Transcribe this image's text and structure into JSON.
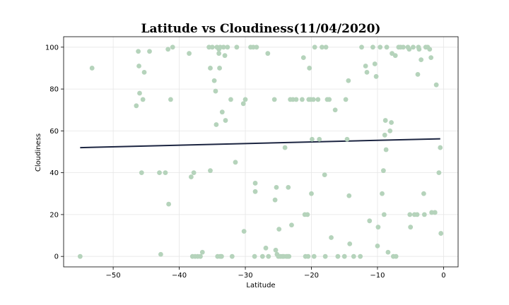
{
  "chart_data": {
    "type": "scatter",
    "title": "Latitude vs Cloudiness(11/04/2020)",
    "xlabel": "Latitude",
    "ylabel": "Cloudiness",
    "xlim": [
      -57.5,
      2.2
    ],
    "ylim": [
      -5,
      105
    ],
    "xticks": [
      -50,
      -40,
      -30,
      -20,
      -10,
      0
    ],
    "yticks": [
      0,
      20,
      40,
      60,
      80,
      100
    ],
    "grid": true,
    "marker_color": "#b5d3bb",
    "line_color": "#1c2541",
    "regression_line": {
      "x": [
        -55,
        -0.5
      ],
      "y": [
        52,
        56.2
      ]
    },
    "points": [
      [
        -55,
        0
      ],
      [
        -53.2,
        90
      ],
      [
        -46.5,
        72
      ],
      [
        -46.2,
        98
      ],
      [
        -46.1,
        91
      ],
      [
        -46,
        78
      ],
      [
        -45.7,
        40
      ],
      [
        -45.5,
        75
      ],
      [
        -45.3,
        88
      ],
      [
        -44.5,
        98
      ],
      [
        -43,
        40
      ],
      [
        -42.8,
        1
      ],
      [
        -42.1,
        40
      ],
      [
        -41.7,
        99
      ],
      [
        -41.6,
        25
      ],
      [
        -41.3,
        75
      ],
      [
        -41,
        100
      ],
      [
        -38.5,
        97
      ],
      [
        -38.2,
        38
      ],
      [
        -38,
        0
      ],
      [
        -37.8,
        40
      ],
      [
        -37.6,
        0
      ],
      [
        -37.2,
        0
      ],
      [
        -36.8,
        0
      ],
      [
        -36.5,
        2
      ],
      [
        -35.5,
        100
      ],
      [
        -35.3,
        41
      ],
      [
        -35.3,
        90
      ],
      [
        -35,
        100
      ],
      [
        -34.7,
        84
      ],
      [
        -34.5,
        79
      ],
      [
        -34.4,
        63
      ],
      [
        -34.3,
        100
      ],
      [
        -34.2,
        0
      ],
      [
        -34,
        97
      ],
      [
        -34,
        99
      ],
      [
        -33.9,
        90
      ],
      [
        -33.8,
        0
      ],
      [
        -33.8,
        100
      ],
      [
        -33.6,
        0
      ],
      [
        -33.5,
        69
      ],
      [
        -33.3,
        100
      ],
      [
        -33.1,
        96
      ],
      [
        -33,
        65
      ],
      [
        -32.7,
        100
      ],
      [
        -32.2,
        75
      ],
      [
        -32,
        0
      ],
      [
        -31.5,
        45
      ],
      [
        -31.3,
        100
      ],
      [
        -30.3,
        73
      ],
      [
        -30.2,
        12
      ],
      [
        -30,
        75
      ],
      [
        -29.2,
        100
      ],
      [
        -28.8,
        100
      ],
      [
        -28.6,
        0
      ],
      [
        -28.5,
        35
      ],
      [
        -28.5,
        31
      ],
      [
        -28.3,
        100
      ],
      [
        -27.4,
        0
      ],
      [
        -26.9,
        4
      ],
      [
        -26.6,
        97
      ],
      [
        -26.5,
        0
      ],
      [
        -25.6,
        75
      ],
      [
        -25.5,
        27
      ],
      [
        -25.4,
        3
      ],
      [
        -25.3,
        33
      ],
      [
        -25.2,
        1
      ],
      [
        -25,
        0
      ],
      [
        -24.9,
        13
      ],
      [
        -24.7,
        0
      ],
      [
        -24.4,
        0
      ],
      [
        -24.2,
        0
      ],
      [
        -24,
        52
      ],
      [
        -23.8,
        0
      ],
      [
        -23.6,
        0
      ],
      [
        -23.5,
        33
      ],
      [
        -23.4,
        0
      ],
      [
        -23.2,
        75
      ],
      [
        -23,
        15
      ],
      [
        -22.8,
        75
      ],
      [
        -22.3,
        75
      ],
      [
        -21.4,
        75
      ],
      [
        -21.2,
        95
      ],
      [
        -21,
        20
      ],
      [
        -20.9,
        0
      ],
      [
        -20.6,
        20
      ],
      [
        -20.5,
        0
      ],
      [
        -20.4,
        75
      ],
      [
        -20.3,
        90
      ],
      [
        -20.1,
        75
      ],
      [
        -20,
        30
      ],
      [
        -19.9,
        56
      ],
      [
        -19.7,
        75
      ],
      [
        -19.6,
        0
      ],
      [
        -19.5,
        100
      ],
      [
        -19,
        75
      ],
      [
        -18.8,
        56
      ],
      [
        -18.4,
        100
      ],
      [
        -18,
        39
      ],
      [
        -17.9,
        0
      ],
      [
        -17.8,
        100
      ],
      [
        -17.6,
        75
      ],
      [
        -17.3,
        75
      ],
      [
        -17,
        9
      ],
      [
        -16.4,
        70
      ],
      [
        -16,
        0
      ],
      [
        -15,
        0
      ],
      [
        -14.8,
        75
      ],
      [
        -14.6,
        56
      ],
      [
        -14.4,
        84
      ],
      [
        -14.3,
        29
      ],
      [
        -14.2,
        6
      ],
      [
        -13.6,
        0
      ],
      [
        -12.6,
        0
      ],
      [
        -12.4,
        100
      ],
      [
        -11.8,
        91
      ],
      [
        -11.6,
        88
      ],
      [
        -11.2,
        17
      ],
      [
        -10.7,
        100
      ],
      [
        -10.4,
        92
      ],
      [
        -10.2,
        86
      ],
      [
        -10,
        5
      ],
      [
        -9.9,
        14
      ],
      [
        -9.6,
        100
      ],
      [
        -9.3,
        30
      ],
      [
        -9.1,
        41
      ],
      [
        -9,
        20
      ],
      [
        -8.9,
        58
      ],
      [
        -8.8,
        65
      ],
      [
        -8.7,
        51
      ],
      [
        -8.6,
        100
      ],
      [
        -8.4,
        2
      ],
      [
        -8.1,
        60
      ],
      [
        -7.9,
        64
      ],
      [
        -7.8,
        97
      ],
      [
        -7.6,
        0
      ],
      [
        -7.3,
        96
      ],
      [
        -7.2,
        0
      ],
      [
        -6.8,
        100
      ],
      [
        -6.5,
        100
      ],
      [
        -6.1,
        100
      ],
      [
        -5.4,
        100
      ],
      [
        -5.2,
        99
      ],
      [
        -5.1,
        20
      ],
      [
        -5,
        14
      ],
      [
        -4.6,
        100
      ],
      [
        -4.4,
        20
      ],
      [
        -4,
        20
      ],
      [
        -3.9,
        87
      ],
      [
        -3.8,
        100
      ],
      [
        -3.7,
        99
      ],
      [
        -3.4,
        94
      ],
      [
        -3,
        30
      ],
      [
        -2.9,
        20
      ],
      [
        -2.7,
        100
      ],
      [
        -2.4,
        100
      ],
      [
        -2.1,
        99
      ],
      [
        -1.9,
        95
      ],
      [
        -1.8,
        21
      ],
      [
        -1.3,
        21
      ],
      [
        -1.1,
        82
      ],
      [
        -0.7,
        40
      ],
      [
        -0.5,
        52
      ],
      [
        -0.4,
        11
      ]
    ]
  }
}
